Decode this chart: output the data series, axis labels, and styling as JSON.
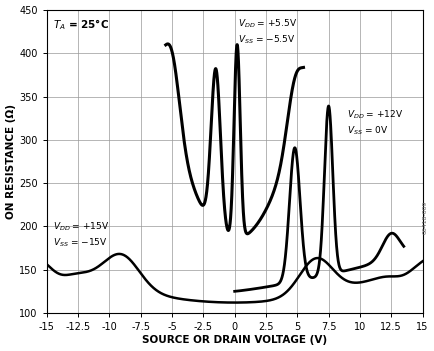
{
  "title": "",
  "xlabel": "SOURCE OR DRAIN VOLTAGE (V)",
  "ylabel": "ON RESISTANCE (Ω)",
  "xlim": [
    -15,
    15
  ],
  "ylim": [
    100,
    450
  ],
  "xticks": [
    -15,
    -12.5,
    -10,
    -7.5,
    -5,
    -2.5,
    0,
    2.5,
    5,
    7.5,
    10,
    12.5,
    15
  ],
  "yticks": [
    100,
    150,
    200,
    250,
    300,
    350,
    400,
    450
  ],
  "watermark": "06418-009",
  "bg_color": "#ffffff",
  "line_color": "#000000"
}
